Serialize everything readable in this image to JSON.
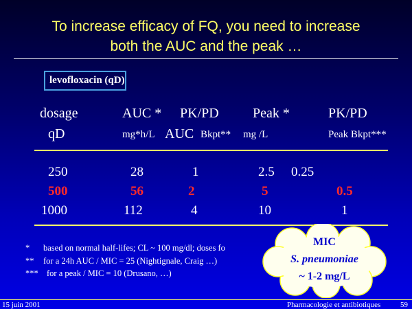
{
  "title": {
    "line1": "To increase efficacy of FQ, you need to increase",
    "line2": "both the AUC and the peak …"
  },
  "drug_box": "levofloxacin (qD)",
  "table": {
    "headers_row1": [
      "dosage",
      "AUC *",
      "PK/PD",
      "Peak *",
      "PK/PD"
    ],
    "headers_row2": {
      "dosage": "qD",
      "auc": "mg*h/L",
      "pkpd_auc_a": "AUC",
      "pkpd_auc_b": "Bkpt**",
      "peak": "mg /L",
      "pkpd_peak": "Peak Bkpt***"
    },
    "rows": [
      {
        "dose": "250",
        "auc": "28",
        "auc_bkpt": "1",
        "peak": "2.5",
        "peak_bkpt": "0.25",
        "highlight": false
      },
      {
        "dose": "500",
        "auc": "56",
        "auc_bkpt": "2",
        "peak": "5",
        "peak_bkpt": "0.5",
        "highlight": true
      },
      {
        "dose": "1000",
        "auc": "112",
        "auc_bkpt": "4",
        "peak": "10",
        "peak_bkpt": "1",
        "highlight": false
      }
    ]
  },
  "footnotes": [
    {
      "mark": "*",
      "text": "based on normal half-lifes; CL ~ 100 mg/dl;   doses fo"
    },
    {
      "mark": "**",
      "text": "for a 24h AUC / MIC = 25 (Nightignale, Craig …)"
    },
    {
      "mark": "***",
      "text": "for a peak / MIC = 10 (Drusano, …)"
    }
  ],
  "cloud": {
    "line1": "MIC",
    "line2": "S. pneumoniae",
    "line3": "~ 1-2 mg/L"
  },
  "footer": {
    "date": "15 juin 2001",
    "course": "Pharmacologie et antibiotiques",
    "page": "59"
  },
  "colors": {
    "title": "#ffff66",
    "highlight": "#ff2a2a",
    "cloud_text": "#0000cc",
    "rule": "#ffff66"
  }
}
